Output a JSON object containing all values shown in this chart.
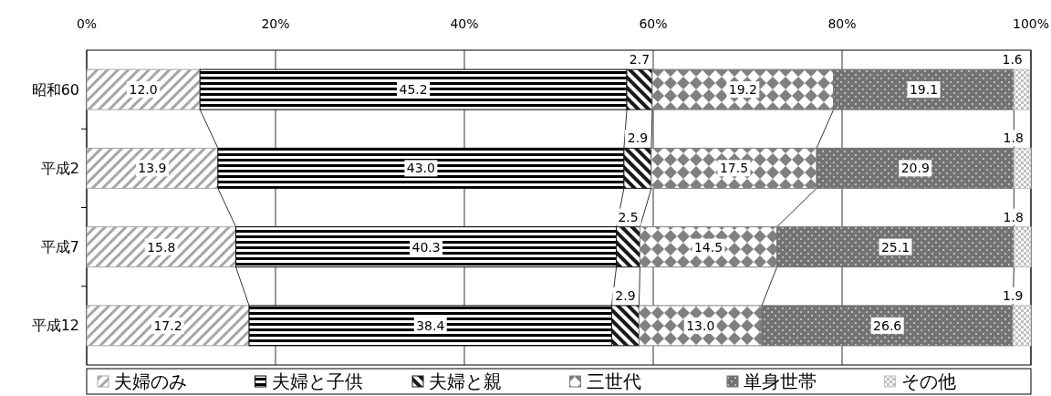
{
  "chart_data": {
    "type": "bar",
    "orientation": "horizontal",
    "stacked": true,
    "categories": [
      "昭和60",
      "平成2",
      "平成7",
      "平成12"
    ],
    "series": [
      {
        "name": "夫婦のみ",
        "color": "#a6a6a6",
        "values": [
          12.0,
          13.9,
          15.8,
          17.2
        ],
        "value_labels": [
          "12.0",
          "13.9",
          "15.8",
          "17.2"
        ]
      },
      {
        "name": "夫婦と子供",
        "color": "#000000",
        "values": [
          45.2,
          43.0,
          40.3,
          38.4
        ],
        "value_labels": [
          "45.2",
          "43.0",
          "40.3",
          "38.4"
        ]
      },
      {
        "name": "夫婦と親",
        "color": "#1a1a1a",
        "values": [
          2.7,
          2.9,
          2.5,
          2.9
        ],
        "value_labels": [
          "2.7",
          "2.9",
          "2.5",
          "2.9"
        ]
      },
      {
        "name": "三世代",
        "color": "#808080",
        "values": [
          19.2,
          17.5,
          14.5,
          13.0
        ],
        "value_labels": [
          "19.2",
          "17.5",
          "14.5",
          "13.0"
        ]
      },
      {
        "name": "単身世帯",
        "color": "#737373",
        "values": [
          19.1,
          20.9,
          25.1,
          26.6
        ],
        "value_labels": [
          "19.1",
          "20.9",
          "25.1",
          "26.6"
        ]
      },
      {
        "name": "その他",
        "color": "#bfbfbf",
        "values": [
          1.6,
          1.8,
          1.8,
          1.9
        ],
        "value_labels": [
          "1.6",
          "1.8",
          "1.8",
          "1.9"
        ]
      }
    ],
    "xlim": [
      0,
      100
    ],
    "xticks": [
      {
        "value": 0,
        "label": "0%"
      },
      {
        "value": 20,
        "label": "20%"
      },
      {
        "value": 40,
        "label": "40%"
      },
      {
        "value": 60,
        "label": "60%"
      },
      {
        "value": 80,
        "label": "80%"
      },
      {
        "value": 100,
        "label": "100%"
      }
    ],
    "grid": "x",
    "legend": "bottom"
  }
}
